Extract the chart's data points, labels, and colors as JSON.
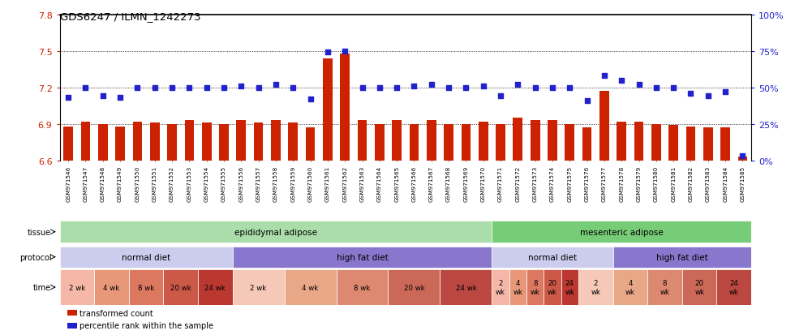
{
  "title": "GDS6247 / ILMN_1242273",
  "samples": [
    "GSM971546",
    "GSM971547",
    "GSM971548",
    "GSM971549",
    "GSM971550",
    "GSM971551",
    "GSM971552",
    "GSM971553",
    "GSM971554",
    "GSM971555",
    "GSM971556",
    "GSM971557",
    "GSM971558",
    "GSM971559",
    "GSM971560",
    "GSM971561",
    "GSM971562",
    "GSM971563",
    "GSM971564",
    "GSM971565",
    "GSM971566",
    "GSM971567",
    "GSM971568",
    "GSM971569",
    "GSM971570",
    "GSM971571",
    "GSM971572",
    "GSM971573",
    "GSM971574",
    "GSM971575",
    "GSM971576",
    "GSM971577",
    "GSM971578",
    "GSM971579",
    "GSM971580",
    "GSM971581",
    "GSM971582",
    "GSM971583",
    "GSM971584",
    "GSM971585"
  ],
  "bar_values": [
    6.88,
    6.92,
    6.9,
    6.88,
    6.92,
    6.91,
    6.9,
    6.93,
    6.91,
    6.9,
    6.93,
    6.91,
    6.93,
    6.91,
    6.87,
    7.44,
    7.48,
    6.93,
    6.9,
    6.93,
    6.9,
    6.93,
    6.9,
    6.9,
    6.92,
    6.9,
    6.95,
    6.93,
    6.93,
    6.9,
    6.87,
    7.17,
    6.92,
    6.92,
    6.9,
    6.89,
    6.88,
    6.87,
    6.87,
    6.63
  ],
  "percentile_values": [
    43,
    50,
    44,
    43,
    50,
    50,
    50,
    50,
    50,
    50,
    51,
    50,
    52,
    50,
    42,
    74,
    75,
    50,
    50,
    50,
    51,
    52,
    50,
    50,
    51,
    44,
    52,
    50,
    50,
    50,
    41,
    58,
    55,
    52,
    50,
    50,
    46,
    44,
    47,
    3
  ],
  "ylim_left": [
    6.6,
    7.8
  ],
  "ylim_right": [
    0,
    100
  ],
  "yticks_left": [
    6.6,
    6.9,
    7.2,
    7.5,
    7.8
  ],
  "yticks_right": [
    0,
    25,
    50,
    75,
    100
  ],
  "bar_color": "#cc2200",
  "dot_color": "#2222cc",
  "grid_color": "#333333",
  "plot_bg_color": "#ffffff",
  "xtick_bg_color": "#cccccc",
  "tissue_row": {
    "label": "tissue",
    "segments": [
      {
        "text": "epididymal adipose",
        "start": 0,
        "end": 25,
        "color": "#aaddaa"
      },
      {
        "text": "mesenteric adipose",
        "start": 25,
        "end": 40,
        "color": "#77cc77"
      }
    ]
  },
  "protocol_row": {
    "label": "protocol",
    "segments": [
      {
        "text": "normal diet",
        "start": 0,
        "end": 10,
        "color": "#ccccee"
      },
      {
        "text": "high fat diet",
        "start": 10,
        "end": 25,
        "color": "#8877cc"
      },
      {
        "text": "normal diet",
        "start": 25,
        "end": 32,
        "color": "#ccccee"
      },
      {
        "text": "high fat diet",
        "start": 32,
        "end": 40,
        "color": "#8877cc"
      }
    ]
  },
  "time_row": {
    "label": "time",
    "time_groups": [
      {
        "text": "2 wk",
        "start": 0,
        "end": 2,
        "color": "#f5b8a8"
      },
      {
        "text": "4 wk",
        "start": 2,
        "end": 4,
        "color": "#e89878"
      },
      {
        "text": "8 wk",
        "start": 4,
        "end": 6,
        "color": "#dd7860"
      },
      {
        "text": "20 wk",
        "start": 6,
        "end": 8,
        "color": "#cc5848"
      },
      {
        "text": "24 wk",
        "start": 8,
        "end": 10,
        "color": "#bb3830"
      },
      {
        "text": "2 wk",
        "start": 10,
        "end": 13,
        "color": "#f5c8b8"
      },
      {
        "text": "4 wk",
        "start": 13,
        "end": 16,
        "color": "#e8a888"
      },
      {
        "text": "8 wk",
        "start": 16,
        "end": 19,
        "color": "#dd8870"
      },
      {
        "text": "20 wk",
        "start": 19,
        "end": 22,
        "color": "#cc6858"
      },
      {
        "text": "24 wk",
        "start": 22,
        "end": 25,
        "color": "#bb4840"
      },
      {
        "text": "2\nwk",
        "start": 25,
        "end": 26,
        "color": "#f5b8a8"
      },
      {
        "text": "4\nwk",
        "start": 26,
        "end": 27,
        "color": "#e89878"
      },
      {
        "text": "8\nwk",
        "start": 27,
        "end": 28,
        "color": "#dd7860"
      },
      {
        "text": "20\nwk",
        "start": 28,
        "end": 29,
        "color": "#cc5848"
      },
      {
        "text": "24\nwk",
        "start": 29,
        "end": 30,
        "color": "#bb3830"
      },
      {
        "text": "2\nwk",
        "start": 30,
        "end": 32,
        "color": "#f5c8b8"
      },
      {
        "text": "4\nwk",
        "start": 32,
        "end": 34,
        "color": "#e8a888"
      },
      {
        "text": "8\nwk",
        "start": 34,
        "end": 36,
        "color": "#dd8870"
      },
      {
        "text": "20\nwk",
        "start": 36,
        "end": 38,
        "color": "#cc6858"
      },
      {
        "text": "24\nwk",
        "start": 38,
        "end": 40,
        "color": "#bb4840"
      }
    ]
  },
  "legend": [
    {
      "label": "transformed count",
      "color": "#cc2200"
    },
    {
      "label": "percentile rank within the sample",
      "color": "#2222cc"
    }
  ]
}
